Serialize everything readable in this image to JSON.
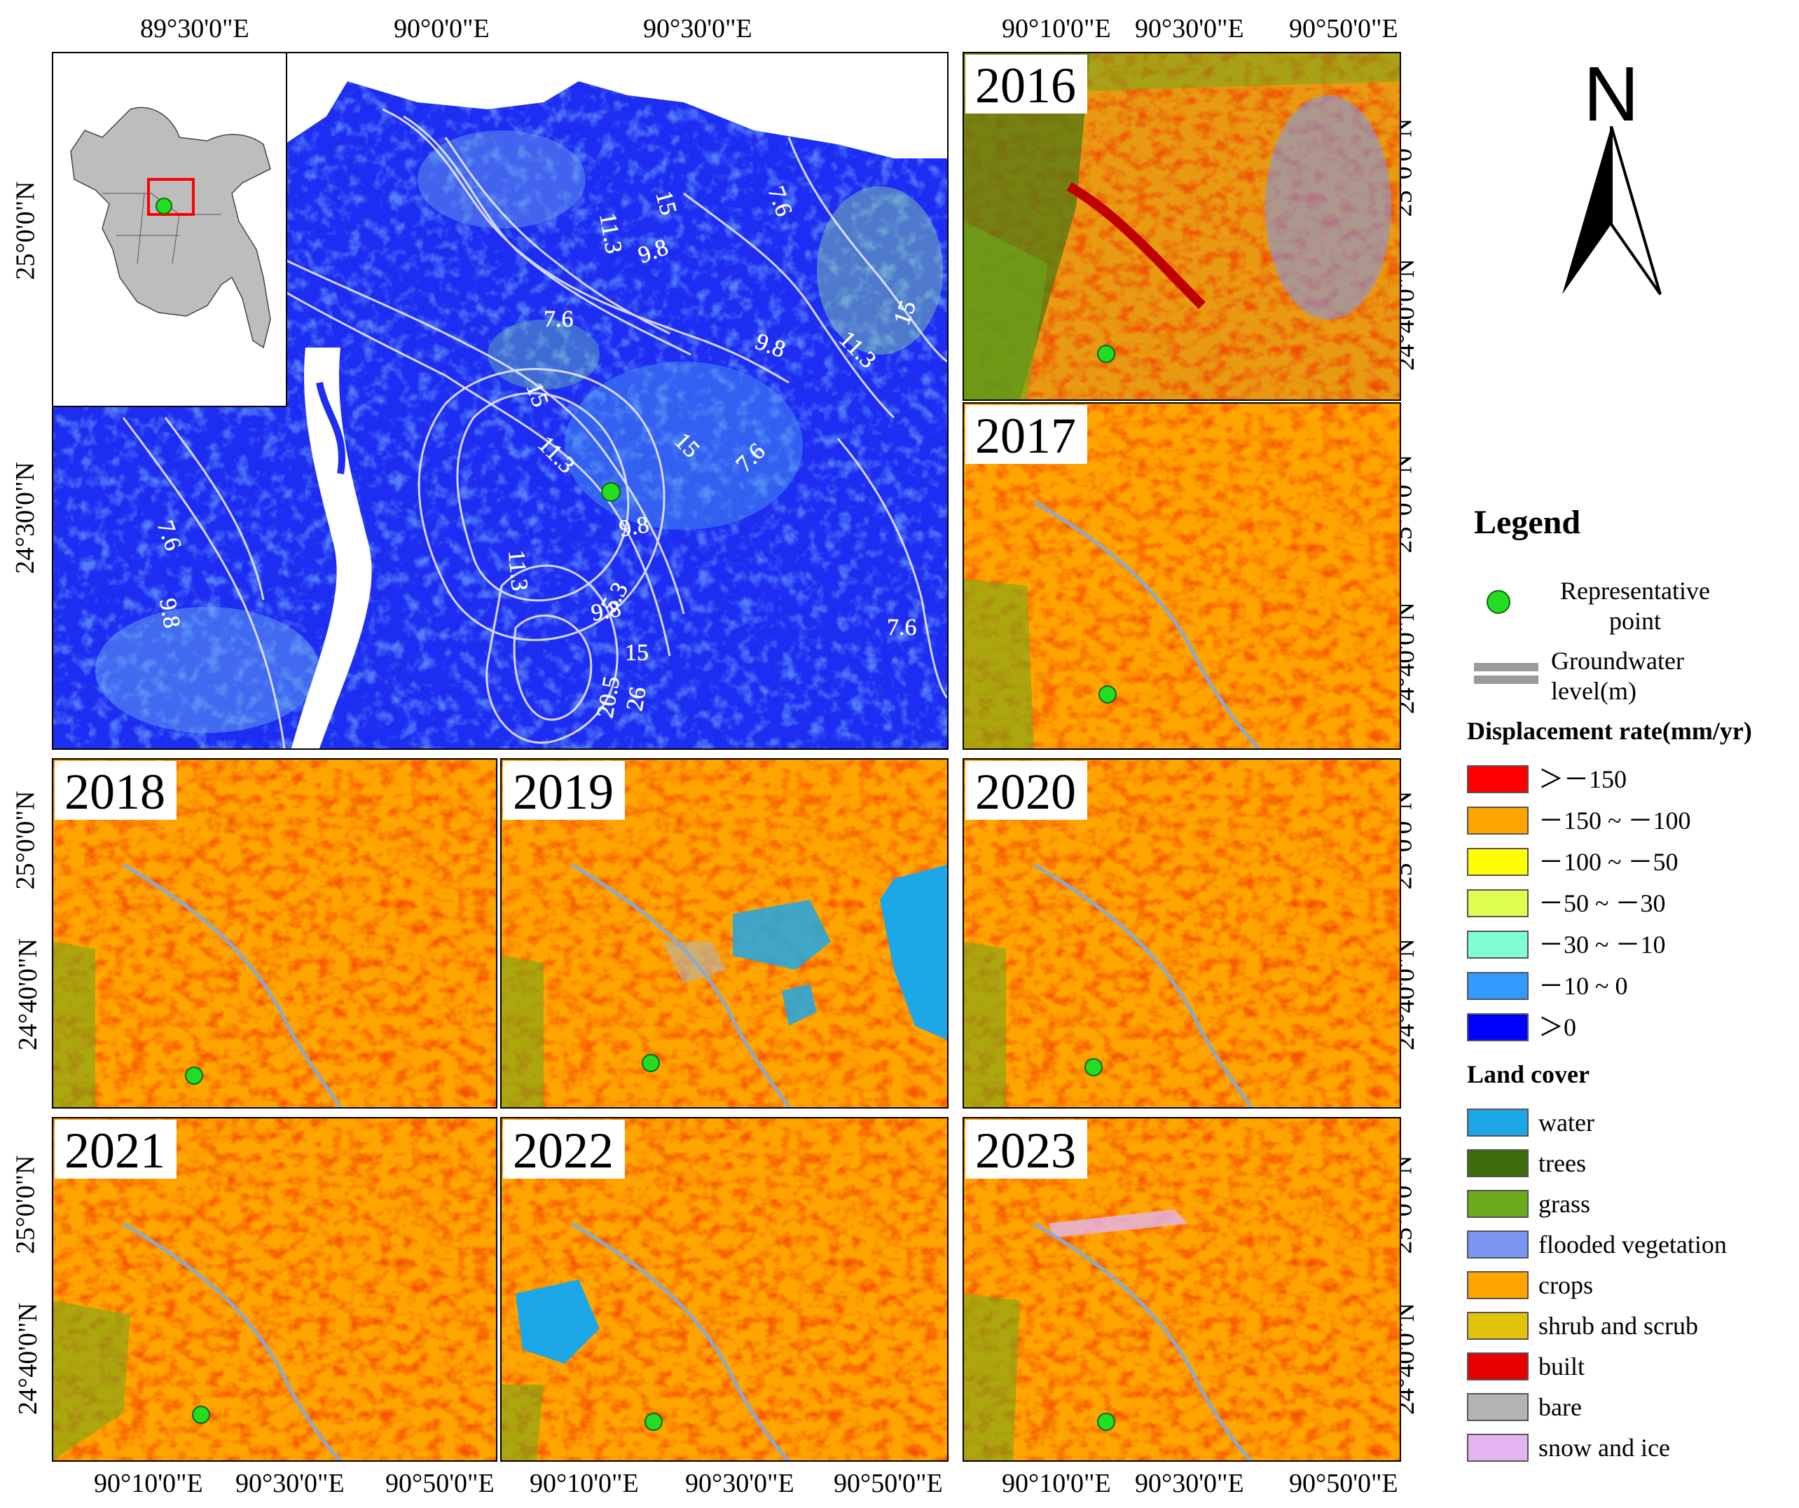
{
  "main_map": {
    "top_ticks": [
      "89°30'0\"E",
      "90°0'0\"E",
      "90°30'0\"E"
    ],
    "left_ticks": [
      "25°0'0\"N",
      "24°30'0\"N"
    ],
    "contour_labels": [
      "11.3",
      "15",
      "7.6",
      "9.8",
      "7.6",
      "9.8",
      "11.3",
      "15",
      "15",
      "15",
      "11.3",
      "7.6",
      "9.8",
      "7.6",
      "9.8",
      "11.3",
      "5.3",
      "9.8",
      "15",
      "20.5",
      "26",
      "7.6"
    ]
  },
  "panels": {
    "p2016": {
      "year": "2016"
    },
    "p2017": {
      "year": "2017"
    },
    "p2018": {
      "year": "2018"
    },
    "p2019": {
      "year": "2019"
    },
    "p2020": {
      "year": "2020"
    },
    "p2021": {
      "year": "2021"
    },
    "p2022": {
      "year": "2022"
    },
    "p2023": {
      "year": "2023"
    }
  },
  "axes": {
    "top_right_ticks": [
      "90°10'0\"E",
      "90°30'0\"E",
      "90°50'0\"E"
    ],
    "bottom_ticks": [
      "90°10'0\"E",
      "90°30'0\"E",
      "90°50'0\"E"
    ],
    "side_ticks": [
      "25°0'0\"N",
      "24°40'0\"N"
    ]
  },
  "north_arrow": {
    "label": "N"
  },
  "legend": {
    "title": "Legend",
    "point_label": "Representative point",
    "gw_label": "Groundwater level(m)",
    "displacement_title": "Displacement rate(mm/yr)",
    "displacement_classes": [
      {
        "label": "＞－150",
        "color": "#ff0000"
      },
      {
        "label": "－150 ~ －100",
        "color": "#ffa500"
      },
      {
        "label": "－100 ~ －50",
        "color": "#ffff00"
      },
      {
        "label": "－50 ~ －30",
        "color": "#dfff4f"
      },
      {
        "label": "－30 ~ －10",
        "color": "#7fffd4"
      },
      {
        "label": "－10 ~ 0",
        "color": "#3399ff"
      },
      {
        "label": "＞0",
        "color": "#0000ff"
      }
    ],
    "landcover_title": "Land cover",
    "landcover_classes": [
      {
        "label": "water",
        "color": "#1ea7e6"
      },
      {
        "label": "trees",
        "color": "#3e6b0a"
      },
      {
        "label": "grass",
        "color": "#6aaa1a"
      },
      {
        "label": "flooded vegetation",
        "color": "#7b96f2"
      },
      {
        "label": "crops",
        "color": "#ffa500"
      },
      {
        "label": "shrub and scrub",
        "color": "#e3c20b"
      },
      {
        "label": "built",
        "color": "#e60000"
      },
      {
        "label": "bare",
        "color": "#b4b4b4"
      },
      {
        "label": "snow and ice",
        "color": "#e3b4f0"
      }
    ]
  }
}
